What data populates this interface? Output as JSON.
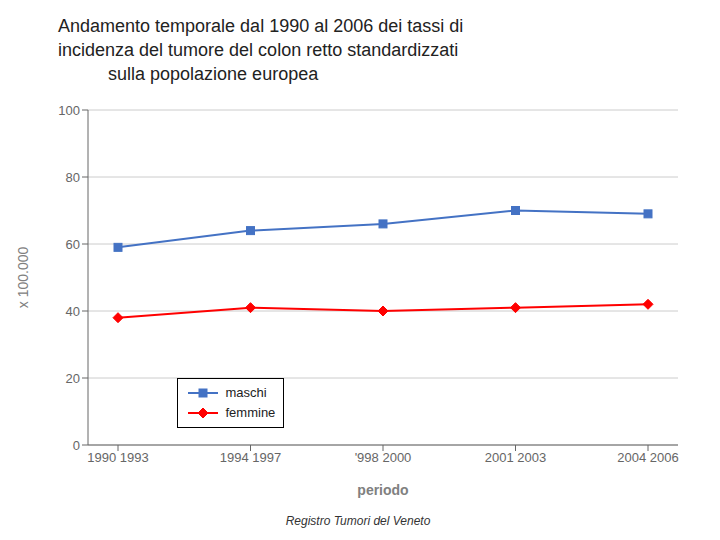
{
  "chart_data": {
    "type": "line",
    "title": "Andamento temporale dal 1990 al 2006 dei tassi di\nincidenza del tumore del colon retto standardizzati\n          sulla popolazione europea",
    "xlabel": "periodo",
    "ylabel": "x 100.000",
    "footnote": "Registro Tumori del Veneto",
    "categories": [
      "1990 1993",
      "1994 1997",
      "'998 2000",
      "2001 2003",
      "2004 2006"
    ],
    "series": [
      {
        "name": "maschi",
        "color": "#4472C4",
        "marker": "square",
        "values": [
          59,
          64,
          66,
          70,
          69
        ]
      },
      {
        "name": "femmine",
        "color": "#FF0000",
        "marker": "diamond",
        "values": [
          38,
          41,
          40,
          41,
          42
        ]
      }
    ],
    "ylim": [
      0,
      100
    ],
    "yticks": [
      0,
      20,
      40,
      60,
      80,
      100
    ],
    "grid": true,
    "legend": "lower left"
  }
}
